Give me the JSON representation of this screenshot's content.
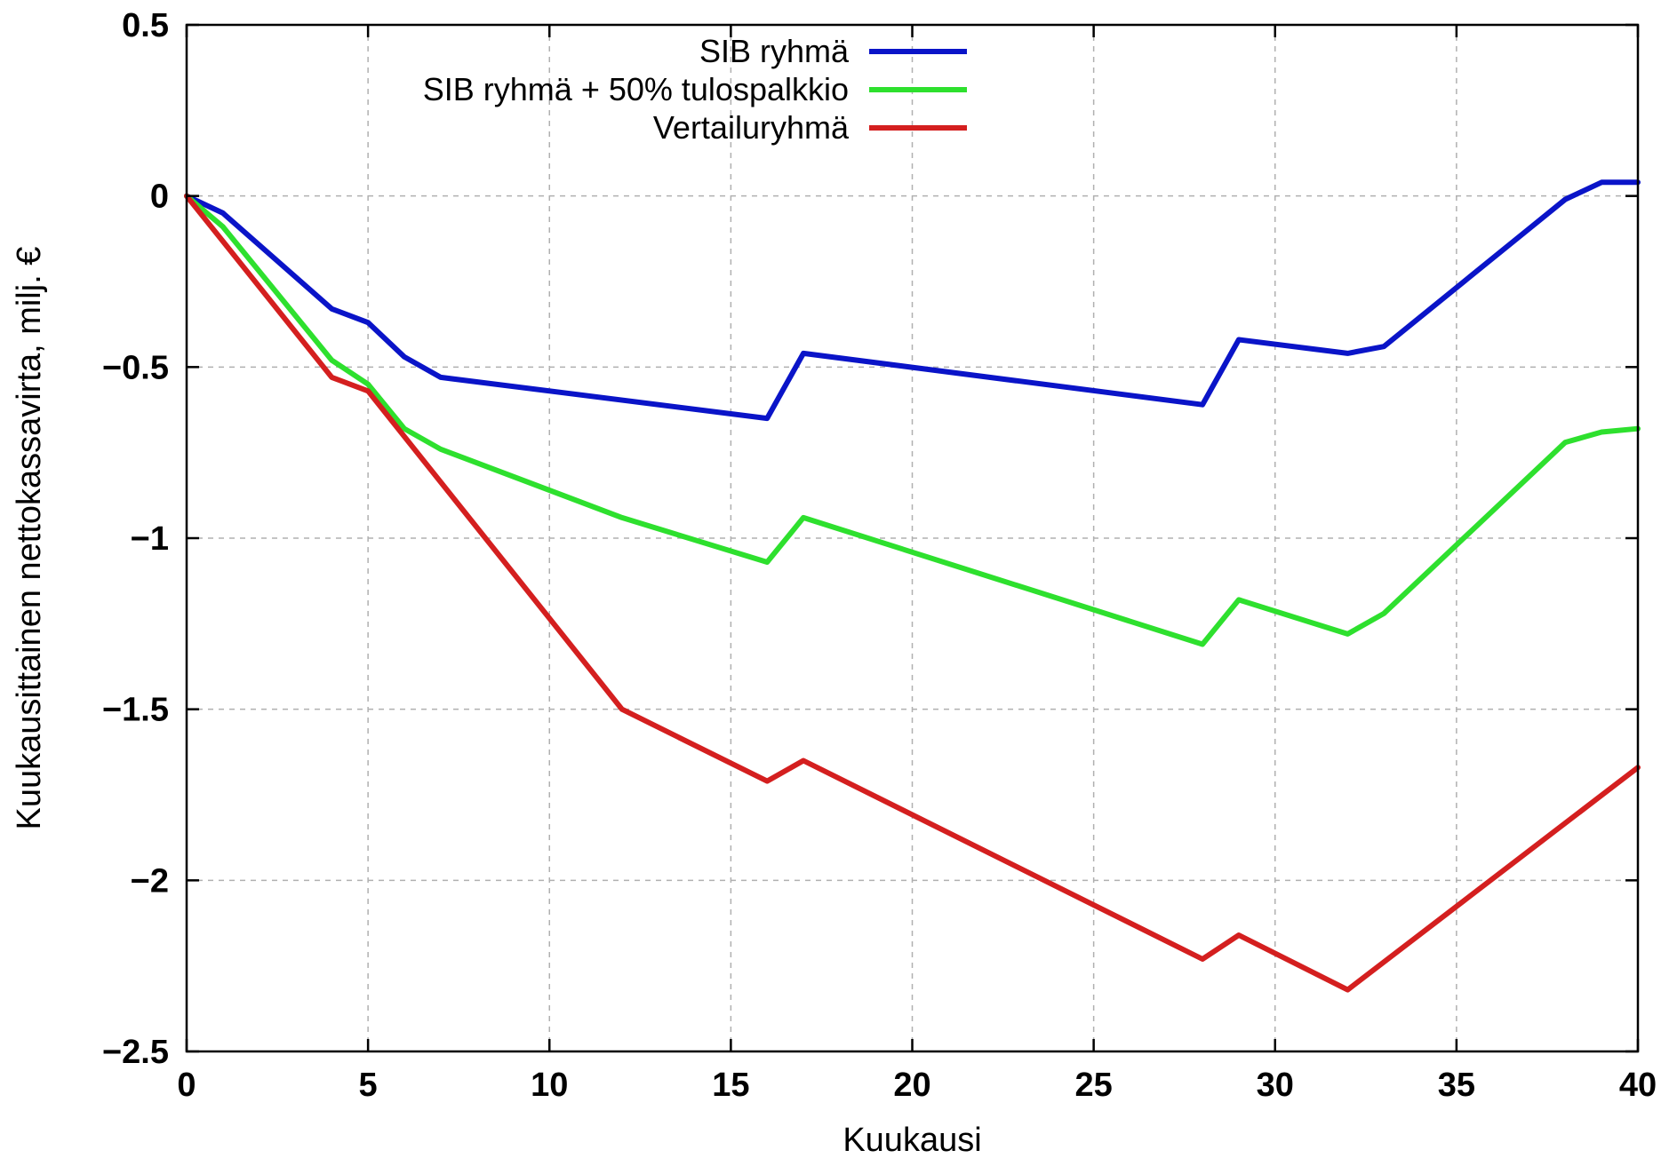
{
  "chart_data": {
    "type": "line",
    "title": "",
    "xlabel": "Kuukausi",
    "ylabel": "Kuukausittainen nettokassavirta, milj. €",
    "xlim": [
      0,
      40
    ],
    "ylim": [
      -2.5,
      0.5
    ],
    "xticks": [
      0,
      5,
      10,
      15,
      20,
      25,
      30,
      35,
      40
    ],
    "yticks": [
      0.5,
      0,
      -0.5,
      -1,
      -1.5,
      -2,
      -2.5
    ],
    "xtick_labels": [
      "0",
      "5",
      "10",
      "15",
      "20",
      "25",
      "30",
      "35",
      "40"
    ],
    "ytick_labels": [
      "0.5",
      "0",
      "−0.5",
      "−1",
      "−1.5",
      "−2",
      "−2.5"
    ],
    "grid": true,
    "legend_position": "top-center",
    "series": [
      {
        "name": "SIB ryhmä",
        "color": "#0a14c8",
        "points": [
          [
            0,
            0
          ],
          [
            1,
            -0.05
          ],
          [
            4,
            -0.33
          ],
          [
            5,
            -0.37
          ],
          [
            6,
            -0.47
          ],
          [
            7,
            -0.53
          ],
          [
            16,
            -0.65
          ],
          [
            17,
            -0.46
          ],
          [
            28,
            -0.61
          ],
          [
            29,
            -0.42
          ],
          [
            32,
            -0.46
          ],
          [
            33,
            -0.44
          ],
          [
            38,
            -0.01
          ],
          [
            39,
            0.04
          ],
          [
            40,
            0.04
          ]
        ]
      },
      {
        "name": "SIB ryhmä + 50% tulospalkkio",
        "color": "#2ee02e",
        "points": [
          [
            0,
            0
          ],
          [
            1,
            -0.09
          ],
          [
            4,
            -0.48
          ],
          [
            5,
            -0.55
          ],
          [
            6,
            -0.68
          ],
          [
            7,
            -0.74
          ],
          [
            12,
            -0.94
          ],
          [
            16,
            -1.07
          ],
          [
            17,
            -0.94
          ],
          [
            28,
            -1.31
          ],
          [
            29,
            -1.18
          ],
          [
            32,
            -1.28
          ],
          [
            33,
            -1.22
          ],
          [
            38,
            -0.72
          ],
          [
            39,
            -0.69
          ],
          [
            40,
            -0.68
          ]
        ]
      },
      {
        "name": "Vertailuryhmä",
        "color": "#d41f1f",
        "points": [
          [
            0,
            0
          ],
          [
            4,
            -0.53
          ],
          [
            5,
            -0.57
          ],
          [
            12,
            -1.5
          ],
          [
            16,
            -1.71
          ],
          [
            17,
            -1.65
          ],
          [
            28,
            -2.23
          ],
          [
            29,
            -2.16
          ],
          [
            32,
            -2.32
          ],
          [
            40,
            -1.67
          ]
        ]
      }
    ]
  }
}
